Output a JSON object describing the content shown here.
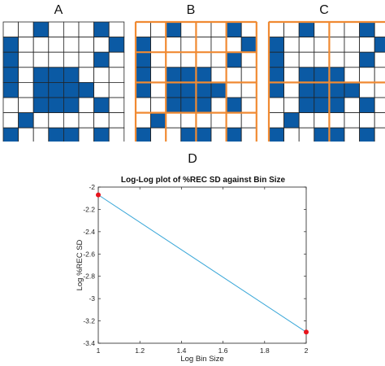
{
  "panels": [
    {
      "label": "A",
      "bins": "none"
    },
    {
      "label": "B",
      "bins": "2x2"
    },
    {
      "label": "C",
      "bins": "4x4"
    }
  ],
  "matrix": [
    [
      0,
      0,
      1,
      0,
      0,
      0,
      1,
      0
    ],
    [
      1,
      0,
      0,
      0,
      0,
      0,
      0,
      1
    ],
    [
      1,
      0,
      0,
      0,
      0,
      0,
      1,
      0
    ],
    [
      1,
      0,
      1,
      1,
      1,
      0,
      0,
      0
    ],
    [
      1,
      0,
      1,
      1,
      1,
      1,
      0,
      0
    ],
    [
      0,
      0,
      1,
      1,
      1,
      0,
      1,
      0
    ],
    [
      0,
      1,
      0,
      0,
      0,
      0,
      0,
      0
    ],
    [
      1,
      0,
      0,
      1,
      1,
      0,
      1,
      0
    ]
  ],
  "colors": {
    "cell_fill": "#0b5aa4",
    "grid_line": "#222222",
    "bin_line": "#f08a32",
    "series_line": "#3aa7d8",
    "marker": "#e8141c"
  },
  "chart_label": "D",
  "chart_data": {
    "type": "line",
    "title": "Log-Log plot of %REC SD against Bin Size",
    "xlabel": "Log Bin Size",
    "ylabel": "Log %REC SD",
    "xlim": [
      1,
      2
    ],
    "ylim": [
      -3.4,
      -2
    ],
    "x_ticks": [
      "1",
      "1.2",
      "1.4",
      "1.6",
      "1.8",
      "2"
    ],
    "y_ticks": [
      "-2",
      "-2.2",
      "-2.4",
      "-2.6",
      "-2.8",
      "-3",
      "-3.2",
      "-3.4"
    ],
    "grid": false,
    "series": [
      {
        "x": [
          1,
          2
        ],
        "y": [
          -2.07,
          -3.3
        ]
      }
    ]
  }
}
